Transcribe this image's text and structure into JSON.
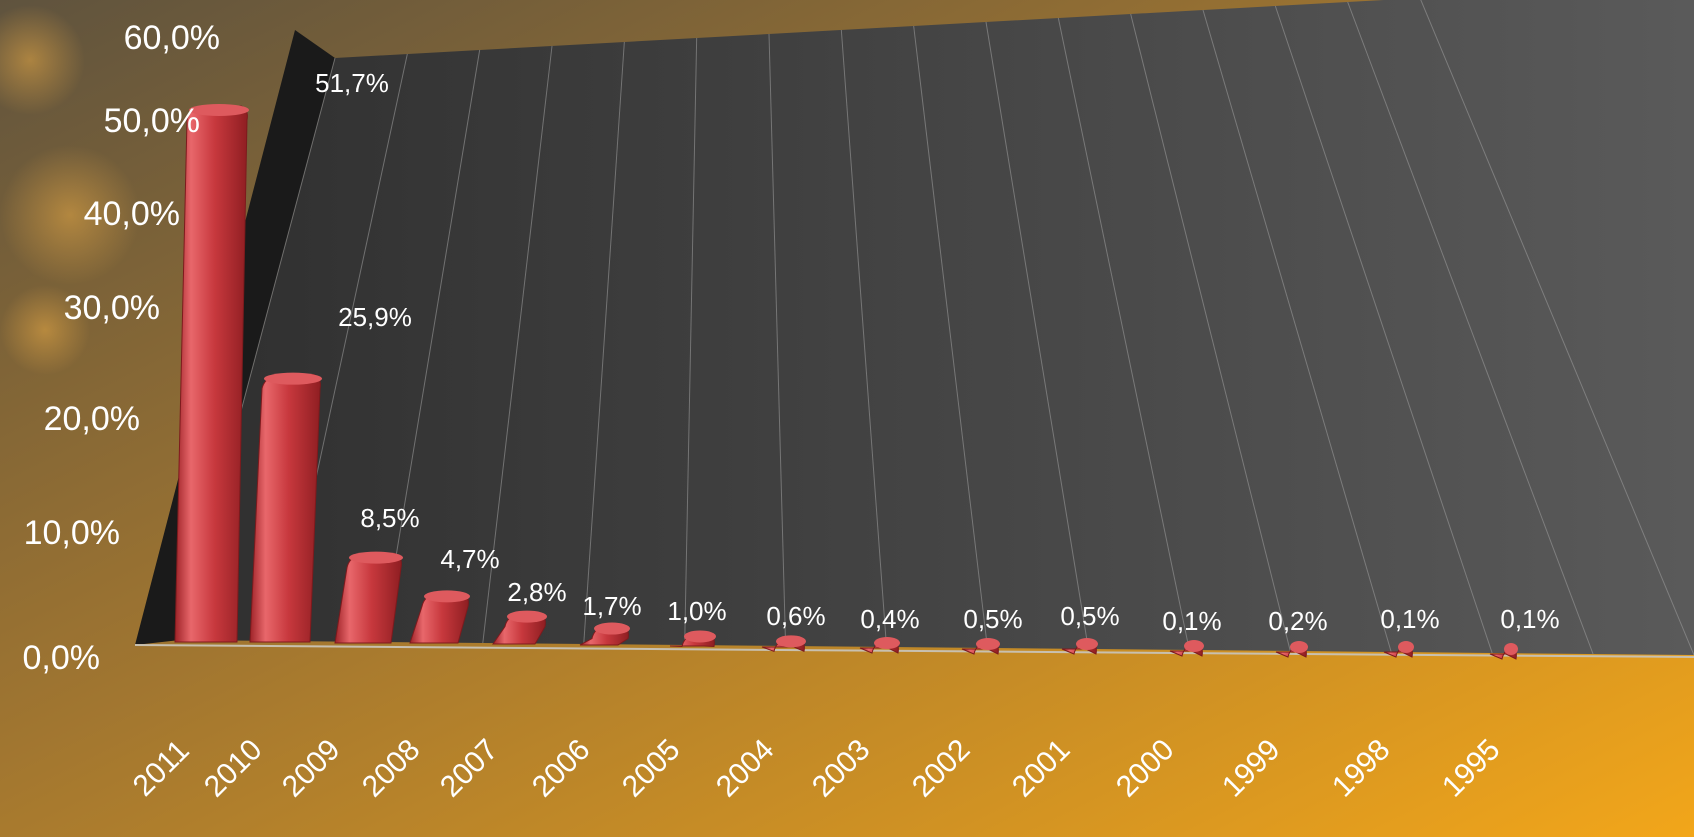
{
  "chart_data": {
    "type": "bar",
    "title": "",
    "xlabel": "",
    "ylabel": "",
    "ylim": [
      0,
      60
    ],
    "y_ticks": [
      "0,0%",
      "10,0%",
      "20,0%",
      "30,0%",
      "40,0%",
      "50,0%",
      "60,0%"
    ],
    "categories": [
      "2011",
      "2010",
      "2009",
      "2008",
      "2007",
      "2006",
      "2005",
      "2004",
      "2003",
      "2002",
      "2001",
      "2000",
      "1999",
      "1998",
      "1995"
    ],
    "values": [
      51.7,
      25.9,
      8.5,
      4.7,
      2.8,
      1.7,
      1.0,
      0.6,
      0.4,
      0.5,
      0.5,
      0.1,
      0.2,
      0.1,
      0.1
    ],
    "data_labels": [
      "51,7%",
      "25,9%",
      "8,5%",
      "4,7%",
      "2,8%",
      "1,7%",
      "1,0%",
      "0,6%",
      "0,4%",
      "0,5%",
      "0,5%",
      "0,1%",
      "0,2%",
      "0,1%",
      "0,1%"
    ],
    "grid": true,
    "legend": "none",
    "colors": {
      "bar": "#c7383d",
      "bar_highlight": "#e8676b",
      "plot_wall": "#3e3e3e",
      "side_wall": "#1c1c1c",
      "background_dark": "#6b5a3e",
      "background_light": "#f0a81e",
      "text": "#ffffff"
    }
  }
}
